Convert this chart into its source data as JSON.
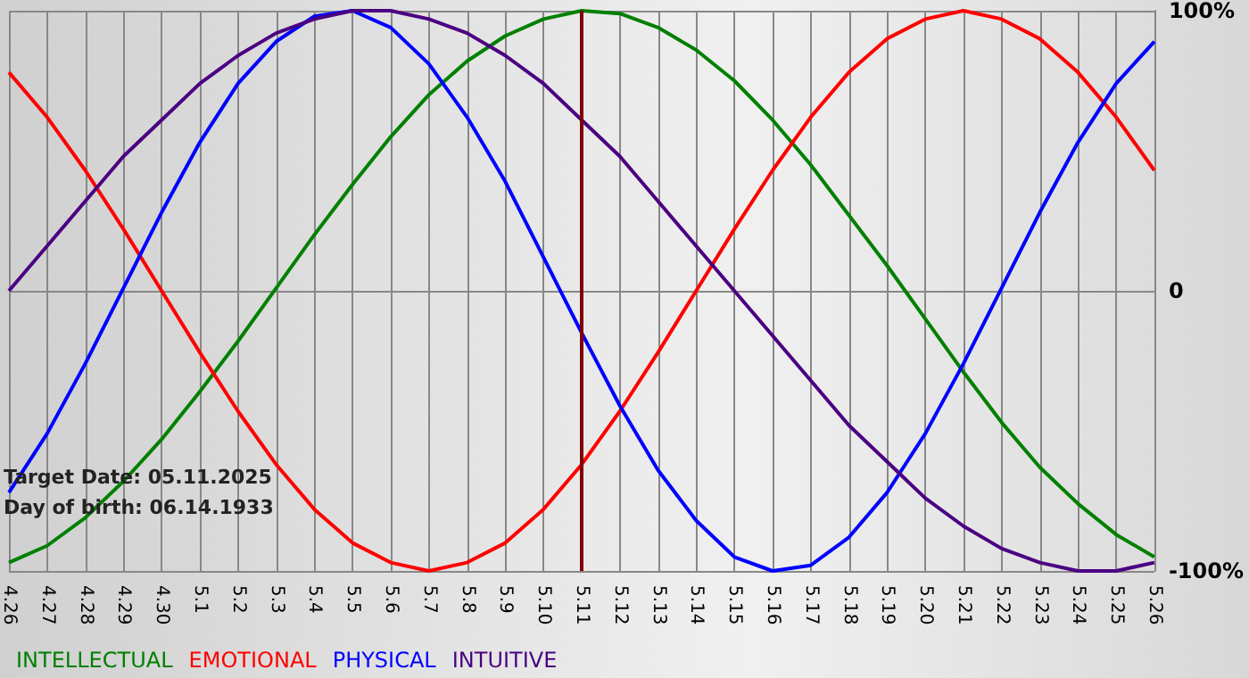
{
  "chart_data": {
    "type": "line",
    "categories": [
      "4.26",
      "4.27",
      "4.28",
      "4.29",
      "4.30",
      "5.1",
      "5.2",
      "5.3",
      "5.4",
      "5.5",
      "5.6",
      "5.7",
      "5.8",
      "5.9",
      "5.10",
      "5.11",
      "5.12",
      "5.13",
      "5.14",
      "5.15",
      "5.16",
      "5.17",
      "5.18",
      "5.19",
      "5.20",
      "5.21",
      "5.22",
      "5.23",
      "5.24",
      "5.25",
      "5.26"
    ],
    "series": [
      {
        "name": "INTELLECTUAL",
        "color": "#008000",
        "values": [
          -97,
          -91,
          -81,
          -68,
          -53,
          -36,
          -18,
          1,
          20,
          38,
          55,
          70,
          82,
          91,
          97,
          100,
          99,
          94,
          86,
          75,
          61,
          45,
          27,
          9,
          -10,
          -29,
          -47,
          -63,
          -76,
          -87,
          -95
        ]
      },
      {
        "name": "EMOTIONAL",
        "color": "#ff0000",
        "values": [
          78,
          62,
          43,
          22,
          0,
          -22,
          -43,
          -62,
          -78,
          -90,
          -97,
          -100,
          -97,
          -90,
          -78,
          -62,
          -43,
          -22,
          0,
          22,
          43,
          62,
          78,
          90,
          97,
          100,
          97,
          90,
          78,
          62,
          43
        ]
      },
      {
        "name": "PHYSICAL",
        "color": "#0000ff",
        "values": [
          -72,
          -51,
          -26,
          1,
          28,
          53,
          74,
          89,
          98,
          100,
          94,
          81,
          62,
          39,
          12,
          -15,
          -41,
          -64,
          -82,
          -95,
          -100,
          -98,
          -88,
          -72,
          -51,
          -26,
          1,
          28,
          53,
          74,
          89
        ]
      },
      {
        "name": "INTUITIVE",
        "color": "#4b0082",
        "values": [
          0,
          16,
          32,
          48,
          61,
          74,
          84,
          92,
          97,
          100,
          100,
          97,
          92,
          84,
          74,
          61,
          48,
          32,
          16,
          0,
          -16,
          -32,
          -48,
          -61,
          -74,
          -84,
          -92,
          -97,
          -100,
          -100,
          -97
        ]
      }
    ],
    "ylim": [
      -100,
      100
    ],
    "yticks": [
      {
        "value": -100,
        "label": "-100%"
      },
      {
        "value": 0,
        "label": "0"
      },
      {
        "value": 100,
        "label": "100%"
      }
    ],
    "ref_lines": [
      {
        "axis": "x",
        "value": "5.11",
        "color": "#800000"
      }
    ],
    "annotations": [
      "Target Date: 05.11.2025",
      "Day of birth: 06.14.1933"
    ],
    "grid": true,
    "legend": "bottom left",
    "marker": "none",
    "line_style": "solid"
  }
}
